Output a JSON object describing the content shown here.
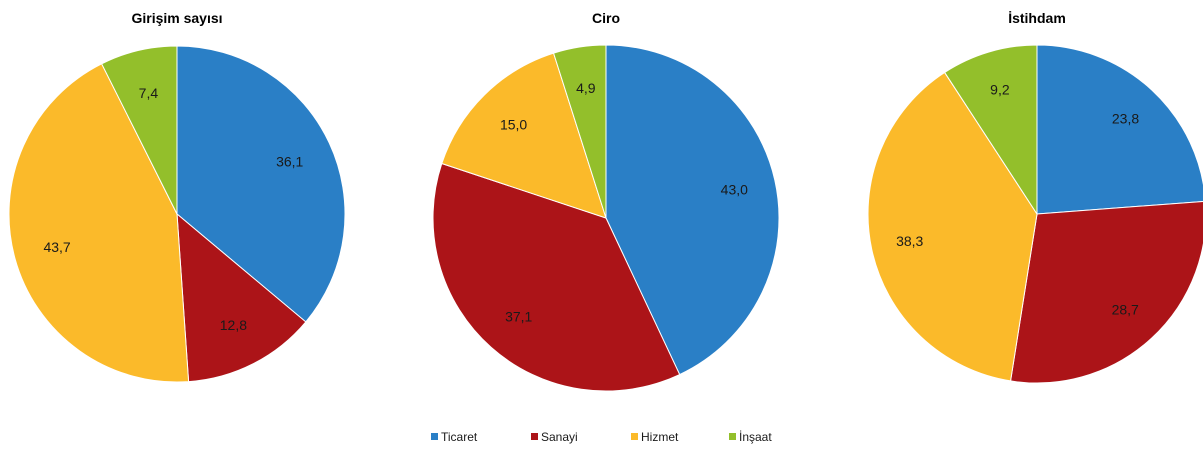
{
  "colors": {
    "Ticaret": "#2A7FC6",
    "Sanayi": "#AC1418",
    "Hizmet": "#FBBA2A",
    "İnşaat": "#93BF2B"
  },
  "legend": {
    "items": [
      "Ticaret",
      "Sanayi",
      "Hizmet",
      "İnşaat"
    ],
    "position": "bottom-center"
  },
  "chart_data": [
    {
      "type": "pie",
      "title": "Girişim sayısı",
      "categories": [
        "Ticaret",
        "Sanayi",
        "Hizmet",
        "İnşaat"
      ],
      "values": [
        36.1,
        12.8,
        43.7,
        7.4
      ],
      "labels": [
        "36,1",
        "12,8",
        "43,7",
        "7,4"
      ]
    },
    {
      "type": "pie",
      "title": "Ciro",
      "categories": [
        "Ticaret",
        "Sanayi",
        "Hizmet",
        "İnşaat"
      ],
      "values": [
        43.0,
        37.1,
        15.0,
        4.9
      ],
      "labels": [
        "43,0",
        "37,1",
        "15,0",
        "4,9"
      ]
    },
    {
      "type": "pie",
      "title": "İstihdam",
      "categories": [
        "Ticaret",
        "Sanayi",
        "Hizmet",
        "İnşaat"
      ],
      "values": [
        23.8,
        28.7,
        38.3,
        9.2
      ],
      "labels": [
        "23,8",
        "28,7",
        "38,3",
        "9,2"
      ]
    }
  ]
}
